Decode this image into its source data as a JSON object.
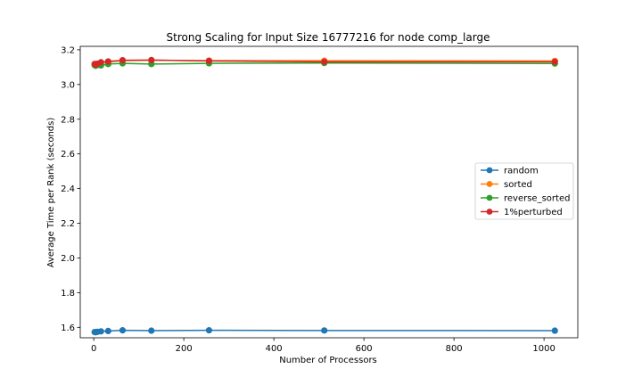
{
  "chart_data": {
    "type": "line",
    "title": "Strong Scaling for Input Size 16777216 for node comp_large",
    "xlabel": "Number of Processors",
    "ylabel": "Average Time per Rank (seconds)",
    "xlim": [
      -30,
      1075
    ],
    "ylim": [
      1.54,
      3.22
    ],
    "xticks": [
      0,
      200,
      400,
      600,
      800,
      1000
    ],
    "yticks": [
      1.6,
      1.8,
      2.0,
      2.2,
      2.4,
      2.6,
      2.8,
      3.0,
      3.2
    ],
    "ytick_labels": [
      "1.6",
      "1.8",
      "2.0",
      "2.2",
      "2.4",
      "2.6",
      "2.8",
      "3.0",
      "3.2"
    ],
    "grid": false,
    "legend_position": "center-right",
    "x": [
      2,
      4,
      8,
      16,
      32,
      64,
      128,
      256,
      512,
      1024
    ],
    "series": [
      {
        "name": "random",
        "color": "#1f77b4",
        "values": [
          1.573,
          1.572,
          1.574,
          1.577,
          1.579,
          1.583,
          1.581,
          1.583,
          1.582,
          1.581
        ]
      },
      {
        "name": "sorted",
        "color": "#ff7f0e",
        "values": [
          3.118,
          3.115,
          3.12,
          3.125,
          3.13,
          3.138,
          3.14,
          3.138,
          3.137,
          3.136
        ]
      },
      {
        "name": "reverse_sorted",
        "color": "#2ca02c",
        "values": [
          3.112,
          3.108,
          3.112,
          3.11,
          3.118,
          3.122,
          3.118,
          3.122,
          3.124,
          3.121
        ]
      },
      {
        "name": "1%perturbed",
        "color": "#d62728",
        "values": [
          3.118,
          3.115,
          3.12,
          3.128,
          3.133,
          3.14,
          3.141,
          3.136,
          3.131,
          3.131
        ]
      }
    ]
  }
}
